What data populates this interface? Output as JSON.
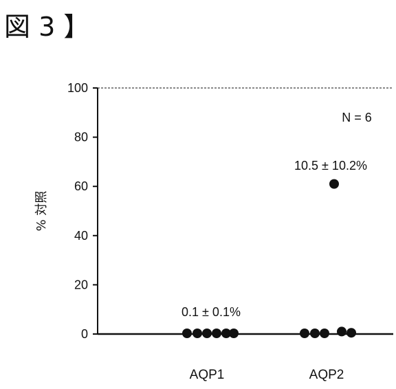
{
  "figure_label": "図 3 】",
  "chart_data": {
    "type": "scatter",
    "ylabel": "% 対照",
    "ylim": [
      0,
      100
    ],
    "yticks": [
      0,
      20,
      40,
      60,
      80,
      100
    ],
    "reference_line": {
      "value": 100,
      "style": "dashed"
    },
    "categories": [
      "AQP1",
      "AQP2"
    ],
    "annotation_n": "N = 6",
    "groups": [
      {
        "category": "AQP1",
        "summary": "0.1 ± 0.1%",
        "values": [
          0.1,
          0.1,
          0.1,
          0.1,
          0.1,
          0.1
        ]
      },
      {
        "category": "AQP2",
        "summary": "10.5 ± 10.2%",
        "values": [
          61,
          0,
          0,
          0,
          1,
          0.5
        ]
      }
    ],
    "colors": {
      "points": "#111111",
      "axis": "#111111"
    }
  }
}
